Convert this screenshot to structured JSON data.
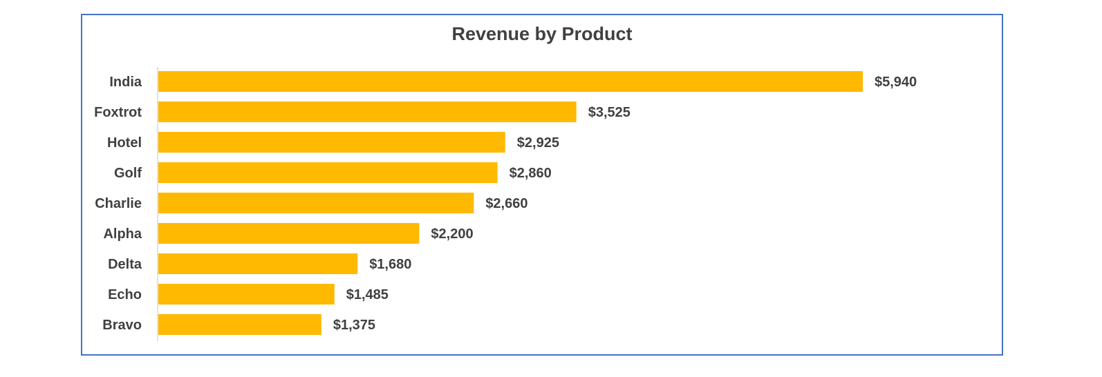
{
  "chart_data": {
    "type": "bar",
    "orientation": "horizontal",
    "title": "Revenue by Product",
    "categories": [
      "India",
      "Foxtrot",
      "Hotel",
      "Golf",
      "Charlie",
      "Alpha",
      "Delta",
      "Echo",
      "Bravo"
    ],
    "values": [
      5940,
      3525,
      2925,
      2860,
      2660,
      2200,
      1680,
      1485,
      1375
    ],
    "data_labels": [
      "$5,940",
      "$3,525",
      "$2,925",
      "$2,860",
      "$2,660",
      "$2,200",
      "$1,680",
      "$1,485",
      "$1,375"
    ],
    "xlim": [
      0,
      5940
    ],
    "grid": false,
    "legend": "none",
    "bar_color": "#FFB900",
    "border_color": "#4472C4"
  }
}
